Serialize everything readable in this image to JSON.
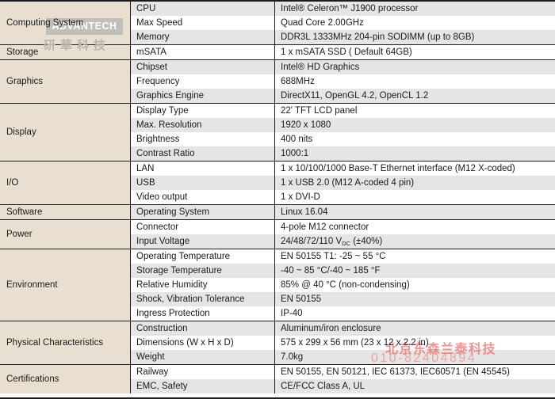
{
  "colors": {
    "category_bg": "#e8dfd0",
    "row_alt_bg": "#e5e5e5",
    "row_bg": "#ffffff",
    "border": "#1c1c1c",
    "vendor_watermark_red": "#e86a6a",
    "logo_box_gray": "#c1bfba"
  },
  "watermarks": {
    "advantech_logo_text": "ADVANTECH",
    "advantech_cn_text": "研華科技",
    "vendor_cn_text": "北京东森兰泰科技",
    "vendor_phone": "010-82404894"
  },
  "table": {
    "sections": [
      {
        "category": "Computing System",
        "rows": [
          {
            "property": "CPU",
            "value": "Intel® Celeron™ J1900 processor"
          },
          {
            "property": "Max Speed",
            "value": "Quad Core 2.00GHz"
          },
          {
            "property": "Memory",
            "value": "DDR3L 1333MHz 204-pin SODIMM (up to 8GB)"
          }
        ]
      },
      {
        "category": "Storage",
        "rows": [
          {
            "property": "mSATA",
            "value": "1 x mSATA SSD ( Default 64GB)"
          }
        ]
      },
      {
        "category": "Graphics",
        "rows": [
          {
            "property": "Chipset",
            "value": "Intel® HD Graphics"
          },
          {
            "property": "Frequency",
            "value": "688MHz"
          },
          {
            "property": "Graphics Engine",
            "value": "DirectX11, OpenGL 4.2, OpenCL 1.2"
          }
        ]
      },
      {
        "category": "Display",
        "rows": [
          {
            "property": "Display Type",
            "value": "22' TFT LCD panel"
          },
          {
            "property": "Max. Resolution",
            "value": "1920 x 1080"
          },
          {
            "property": "Brightness",
            "value": "400 nits"
          },
          {
            "property": "Contrast Ratio",
            "value": "1000:1"
          }
        ]
      },
      {
        "category": "I/O",
        "rows": [
          {
            "property": "LAN",
            "value": "1 x 10/100/1000 Base-T Ethernet interface (M12 X-coded)"
          },
          {
            "property": "USB",
            "value": "1 x USB 2.0 (M12 A-coded 4 pin)"
          },
          {
            "property": "Video output",
            "value": "1 x DVI-D"
          }
        ]
      },
      {
        "category": "Software",
        "rows": [
          {
            "property": "Operating System",
            "value": "Linux 16.04"
          }
        ]
      },
      {
        "category": "Power",
        "rows": [
          {
            "property": "Connector",
            "value": "4-pole M12 connector"
          },
          {
            "property": "Input Voltage",
            "value": "24/48/72/110 V",
            "value_sub": "DC",
            "value_post": " (±40%)"
          }
        ]
      },
      {
        "category": "Environment",
        "rows": [
          {
            "property": "Operating Temperature",
            "value": "EN 50155 T1: -25 ~ 55 °C"
          },
          {
            "property": "Storage Temperature",
            "value": "-40 ~ 85 °C/-40 ~ 185 °F"
          },
          {
            "property": "Relative Humidity",
            "value": "85% @ 40 °C (non-condensing)"
          },
          {
            "property": "Shock, Vibration Tolerance",
            "value": "EN 50155"
          },
          {
            "property": "Ingress Protection",
            "value": "IP-40"
          }
        ]
      },
      {
        "category": "Physical Characteristics",
        "rows": [
          {
            "property": "Construction",
            "value": "Aluminum/iron enclosure"
          },
          {
            "property": "Dimensions (W x H x D)",
            "value": "575 x 299 x 56 mm (23 x 12 x 2.2 in)"
          },
          {
            "property": "Weight",
            "value": "7.0kg"
          }
        ]
      },
      {
        "category": "Certifications",
        "rows": [
          {
            "property": "Railway",
            "value": "EN 50155, EN 50121, IEC 61373, IEC60571 (EN 45545)"
          },
          {
            "property": "EMC, Safety",
            "value": "CE/FCC Class A, UL"
          }
        ]
      }
    ]
  }
}
